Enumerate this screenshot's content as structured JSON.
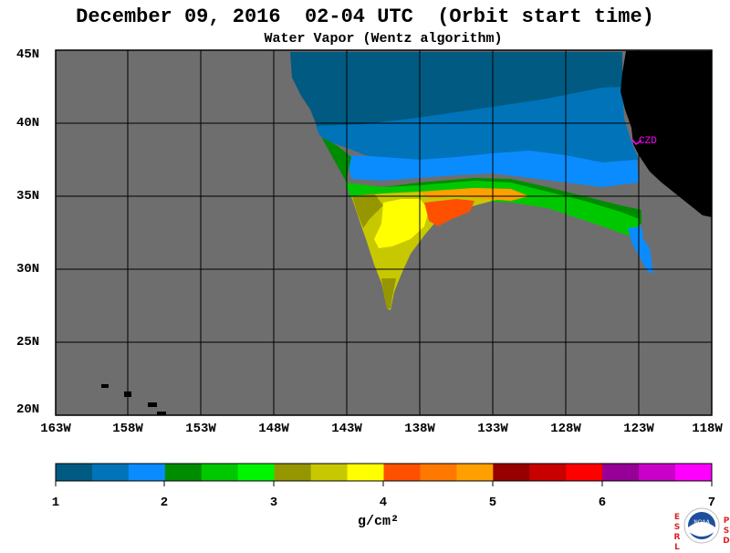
{
  "title": "December 09, 2016  02-04 UTC  (Orbit start time)",
  "subtitle": "Water Vapor (Wentz algorithm)",
  "lat_labels": [
    "45N",
    "40N",
    "35N",
    "30N",
    "25N",
    "20N"
  ],
  "lon_labels": [
    "163W",
    "158W",
    "153W",
    "148W",
    "143W",
    "138W",
    "133W",
    "128W",
    "123W",
    "118W"
  ],
  "colorbar": {
    "colors": [
      "#005a82",
      "#0073b9",
      "#0a8cff",
      "#008c00",
      "#00c800",
      "#00f500",
      "#969600",
      "#c8c800",
      "#ffff00",
      "#ff5000",
      "#ff7800",
      "#ffa000",
      "#960000",
      "#c80000",
      "#ff0000",
      "#960096",
      "#c800c8",
      "#ff00ff"
    ],
    "tick_labels": [
      "1",
      "2",
      "3",
      "4",
      "5",
      "6",
      "7"
    ],
    "unit": "g/cm²"
  },
  "map_colors": {
    "no_data": "#6e6e6e",
    "land": "#000000",
    "grid": "#000000"
  },
  "station": {
    "label": "CZD",
    "color": "#ff00ff"
  },
  "logo": {
    "left_letters": [
      "E",
      "S",
      "R",
      "L"
    ],
    "right_letters": [
      "P",
      "S",
      "D"
    ],
    "center_text": "NOAA",
    "accent_color": "#d22"
  }
}
